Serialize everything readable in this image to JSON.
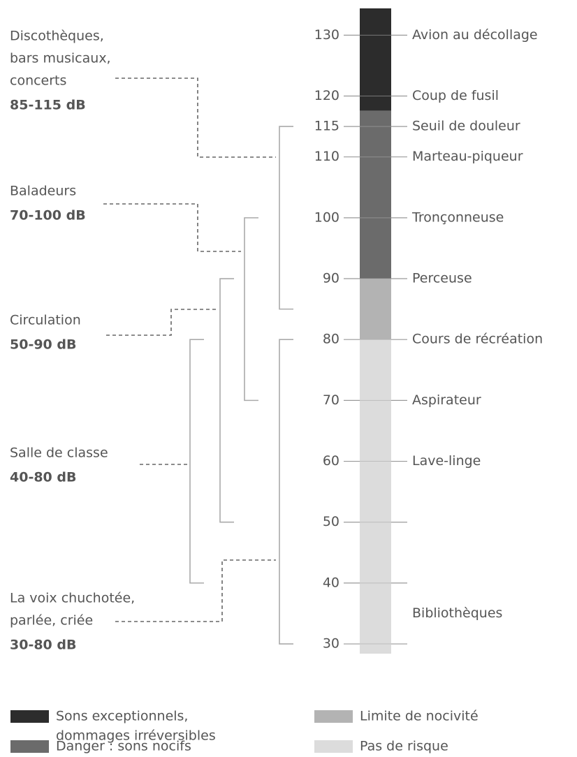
{
  "scale": {
    "range": [
      28.4,
      134.4
    ],
    "ticks": [
      30,
      40,
      50,
      60,
      70,
      80,
      90,
      100,
      110,
      115,
      120,
      130
    ],
    "segments": [
      {
        "from": 117.6,
        "to": 134.4,
        "color": "#2c2c2c"
      },
      {
        "from": 90,
        "to": 117.6,
        "color": "#6b6b6b"
      },
      {
        "from": 80,
        "to": 90,
        "color": "#b3b3b3"
      },
      {
        "from": 28.4,
        "to": 80,
        "color": "#dcdcdc"
      }
    ]
  },
  "sources": [
    {
      "label": "Avion au décollage",
      "value": 130
    },
    {
      "label": "Coup de fusil",
      "value": 120
    },
    {
      "label": "Seuil de douleur",
      "value": 115
    },
    {
      "label": "Marteau-piqueur",
      "value": 110
    },
    {
      "label": "Tronçonneuse",
      "value": 100
    },
    {
      "label": "Perceuse",
      "value": 90
    },
    {
      "label": "Cours de récréation",
      "value": 80
    },
    {
      "label": "Aspirateur",
      "value": 70
    },
    {
      "label": "Lave-linge",
      "value": 60
    },
    {
      "label": "Bibliothèques",
      "value": 35
    }
  ],
  "groups": [
    {
      "lines": [
        "Discothèques,",
        "bars musicaux,",
        "concerts"
      ],
      "range_label": "85-115 dB",
      "range": [
        85,
        115
      ]
    },
    {
      "lines": [
        "Baladeurs"
      ],
      "range_label": "70-100 dB",
      "range": [
        70,
        100
      ]
    },
    {
      "lines": [
        "Circulation"
      ],
      "range_label": "50-90 dB",
      "range": [
        50,
        90
      ]
    },
    {
      "lines": [
        "Salle de classe"
      ],
      "range_label": "40-80 dB",
      "range": [
        40,
        80
      ]
    },
    {
      "lines": [
        "La voix chuchotée,",
        "parlée, criée"
      ],
      "range_label": "30-80 dB",
      "range": [
        30,
        80
      ]
    }
  ],
  "legend": [
    {
      "lines": [
        "Sons exceptionnels,",
        "dommages irréversibles"
      ],
      "color": "#2c2c2c"
    },
    {
      "lines": [
        "Limite de nocivité"
      ],
      "color": "#b3b3b3"
    },
    {
      "lines": [
        "Danger : sons nocifs"
      ],
      "color": "#6b6b6b"
    },
    {
      "lines": [
        "Pas de risque"
      ],
      "color": "#dcdcdc"
    }
  ]
}
